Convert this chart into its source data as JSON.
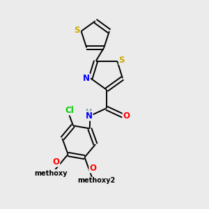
{
  "background_color": "#ebebeb",
  "bond_color": "#000000",
  "atom_colors": {
    "S": "#ccaa00",
    "N": "#0000ff",
    "O": "#ff0000",
    "Cl": "#00cc00",
    "H": "#7a9fa8",
    "C": "#000000"
  },
  "lw": 1.4,
  "fs": 8.5,
  "xlim": [
    0,
    10
  ],
  "ylim": [
    0,
    10
  ]
}
